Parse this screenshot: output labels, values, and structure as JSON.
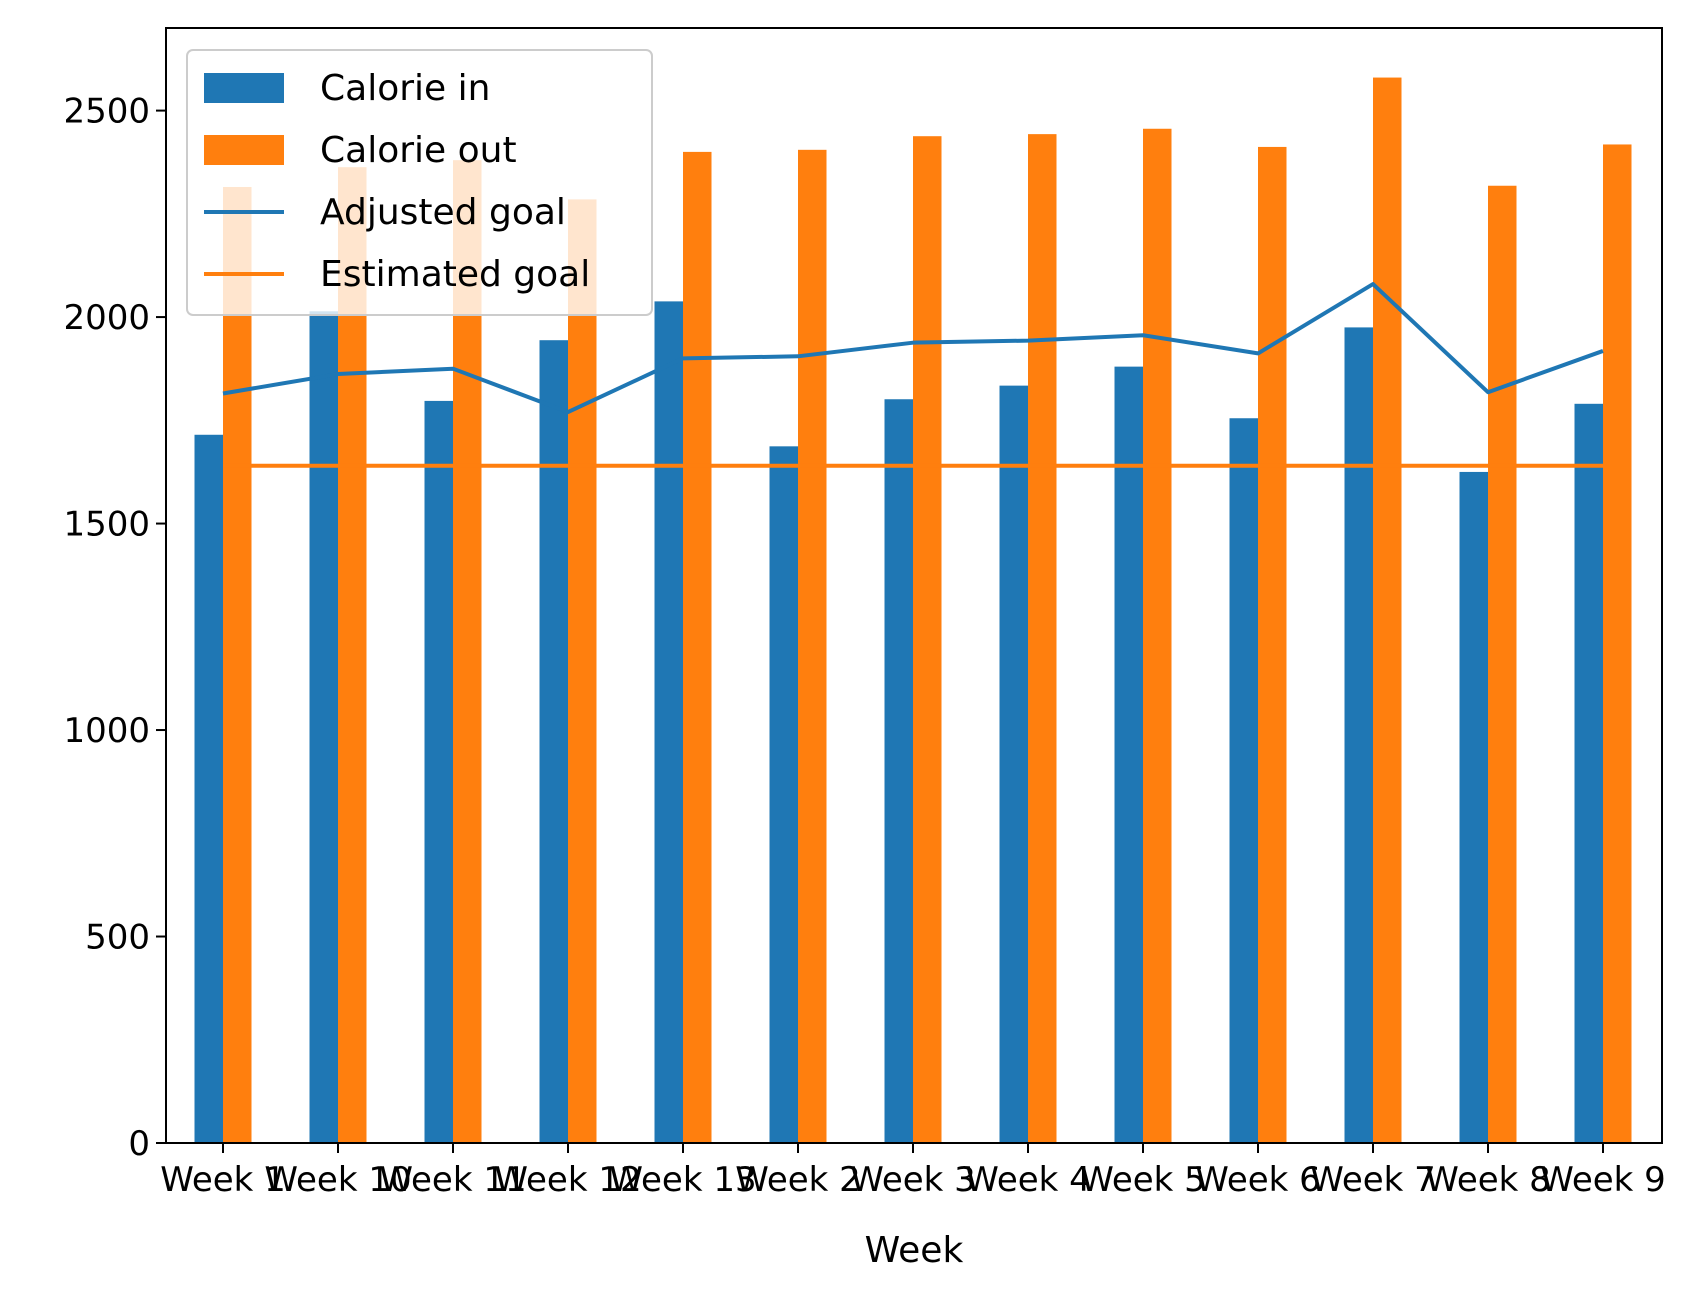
{
  "chart_data": {
    "type": "bar",
    "title": "",
    "xlabel": "Week",
    "ylabel": "",
    "ylim": [
      0,
      2700
    ],
    "yticks": [
      0,
      500,
      1000,
      1500,
      2000,
      2500
    ],
    "categories": [
      "Week 1",
      "Week 10",
      "Week 11",
      "Week 12",
      "Week 13",
      "Week 2",
      "Week 3",
      "Week 4",
      "Week 5",
      "Week 6",
      "Week 7",
      "Week 8",
      "Week 9"
    ],
    "series": [
      {
        "name": "Calorie in",
        "kind": "bar",
        "color": "#1f77b4",
        "values": [
          1715,
          2014,
          1797,
          1944,
          2038,
          1687,
          1801,
          1834,
          1880,
          1755,
          1975,
          1625,
          1790
        ]
      },
      {
        "name": "Calorie out",
        "kind": "bar",
        "color": "#ff7f0e",
        "values": [
          2315,
          2363,
          2380,
          2285,
          2400,
          2405,
          2438,
          2443,
          2456,
          2412,
          2580,
          2318,
          2418
        ]
      },
      {
        "name": "Adjusted goal",
        "kind": "line",
        "color": "#1f77b4",
        "values": [
          1815,
          1862,
          1875,
          1770,
          1900,
          1905,
          1938,
          1943,
          1956,
          1912,
          2080,
          1818,
          1918
        ]
      },
      {
        "name": "Estimated goal",
        "kind": "line",
        "color": "#ff7f0e",
        "values": [
          1640,
          1640,
          1640,
          1640,
          1640,
          1640,
          1640,
          1640,
          1640,
          1640,
          1640,
          1640,
          1640
        ]
      }
    ],
    "legend": {
      "position": "top-left"
    },
    "grid": false
  }
}
